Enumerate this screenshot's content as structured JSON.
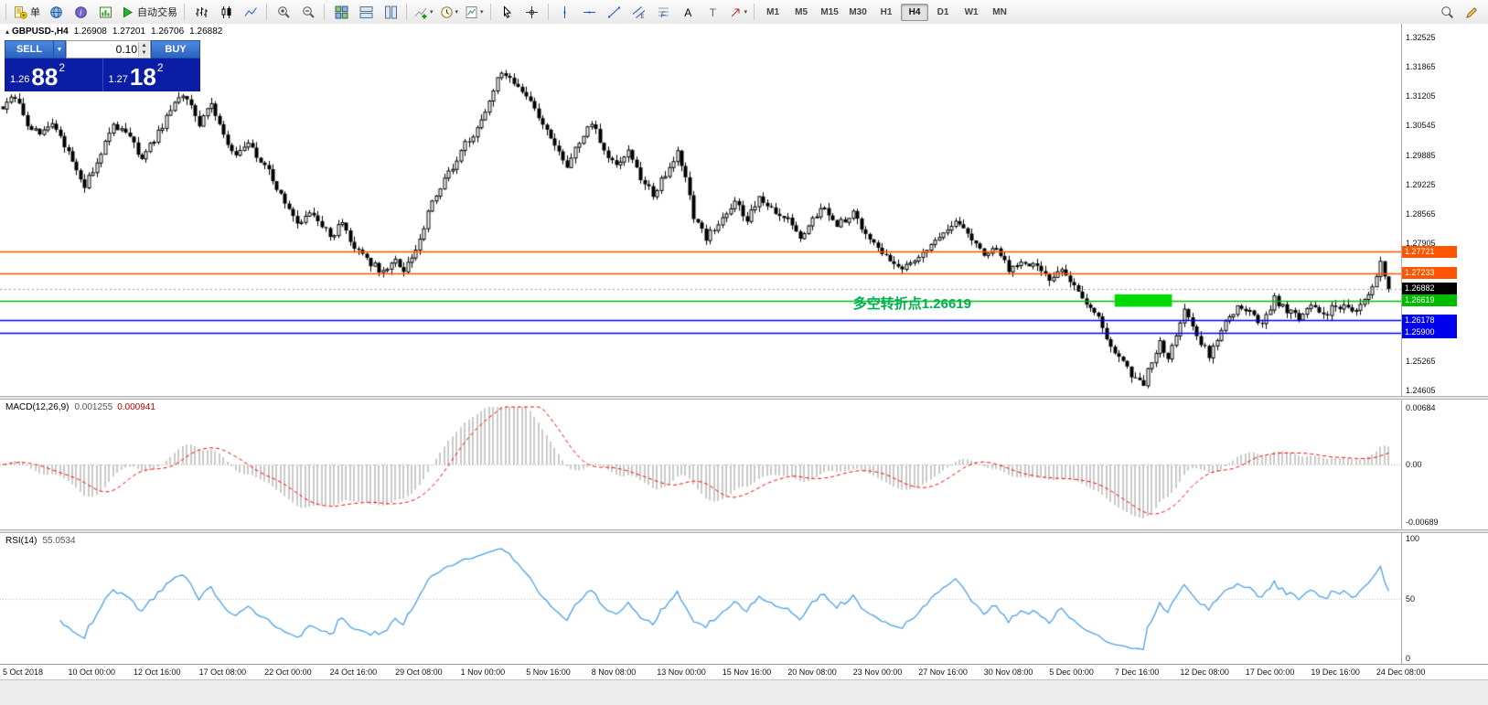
{
  "toolbar": {
    "groups": [
      {
        "items": [
          {
            "name": "new-order-button",
            "icon": "new-order-icon",
            "label": "单"
          },
          {
            "name": "charts-button",
            "icon": "globe-icon"
          },
          {
            "name": "data-window-button",
            "icon": "info-icon"
          },
          {
            "name": "market-watch-button",
            "icon": "chart-book-icon"
          },
          {
            "name": "autotrading-button",
            "icon": "autotrading-play-icon",
            "label": "自动交易"
          }
        ]
      },
      {
        "items": [
          {
            "name": "bar-chart-button",
            "icon": "bars-icon"
          },
          {
            "name": "candlestick-chart-button",
            "icon": "candles-icon"
          },
          {
            "name": "line-chart-button",
            "icon": "line-icon"
          }
        ]
      },
      {
        "items": [
          {
            "name": "zoom-in-button",
            "icon": "zoom-in-icon"
          },
          {
            "name": "zoom-out-button",
            "icon": "zoom-out-icon"
          }
        ]
      },
      {
        "items": [
          {
            "name": "auto-arrange-button",
            "icon": "tile-windows-icon"
          },
          {
            "name": "tile-horizontally-button",
            "icon": "tile-horizontal-icon"
          },
          {
            "name": "tile-vertically-button",
            "icon": "tile-vertical-icon"
          }
        ]
      },
      {
        "items": [
          {
            "name": "indicators-button",
            "icon": "add-indicator-icon",
            "dropdown": true
          },
          {
            "name": "periods-button",
            "icon": "period-clock-icon",
            "dropdown": true
          },
          {
            "name": "templates-button",
            "icon": "template-chart-icon",
            "dropdown": true
          }
        ]
      },
      {
        "items": [
          {
            "name": "cursor-button",
            "icon": "cursor-icon"
          },
          {
            "name": "crosshair-button",
            "icon": "crosshair-icon"
          }
        ]
      },
      {
        "items": [
          {
            "name": "vertical-line-button",
            "icon": "vertical-line-icon"
          },
          {
            "name": "horizontal-line-button",
            "icon": "horizontal-line-icon"
          },
          {
            "name": "trendline-button",
            "icon": "trendline-icon"
          },
          {
            "name": "equidistant-channel-button",
            "icon": "channel-icon"
          },
          {
            "name": "fibonacci-retracement-button",
            "icon": "fibonacci-icon"
          },
          {
            "name": "text-button",
            "icon": "text-icon"
          },
          {
            "name": "text-label-button",
            "icon": "label-icon"
          },
          {
            "name": "arrows-button",
            "icon": "arrow-shapes-icon",
            "dropdown": true
          }
        ]
      }
    ],
    "timeframes": [
      {
        "label": "M1"
      },
      {
        "label": "M5"
      },
      {
        "label": "M15"
      },
      {
        "label": "M30"
      },
      {
        "label": "H1"
      },
      {
        "label": "H4",
        "active": true
      },
      {
        "label": "D1"
      },
      {
        "label": "W1"
      },
      {
        "label": "MN"
      }
    ],
    "right": [
      {
        "name": "search-button",
        "icon": "search-icon"
      },
      {
        "name": "quick-edit-button",
        "icon": "pencil-icon"
      }
    ]
  },
  "header": {
    "symbol": "GBPUSD-,H4",
    "open": "1.26908",
    "high": "1.27201",
    "low": "1.26706",
    "close": "1.26882"
  },
  "widget": {
    "sell_label": "SELL",
    "buy_label": "BUY",
    "volume": "0.10",
    "sell_price": {
      "prefix": "1.26",
      "big": "88",
      "sup": "2"
    },
    "buy_price": {
      "prefix": "1.27",
      "big": "18",
      "sup": "2"
    }
  },
  "macd": {
    "label": "MACD(12,26,9)",
    "value1": "0.001255",
    "value2": "0.000941",
    "scale": [
      "0.00684",
      "0.00",
      "-0.00689"
    ],
    "range": 0.0069
  },
  "rsi": {
    "label": "RSI(14)",
    "value": "55.0534",
    "scale": [
      "100",
      "50",
      "0"
    ],
    "level": 50
  },
  "chart_data": {
    "type": "candlestick",
    "symbol": "GBPUSD-",
    "timeframe": "H4",
    "bar_count": 340,
    "seed": 90210,
    "last_close": 1.26882,
    "price_axis": {
      "min": 1.245,
      "max": 1.3283,
      "tick_labels": [
        "1.32525",
        "1.31865",
        "1.31205",
        "1.30545",
        "1.29885",
        "1.29225",
        "1.28565",
        "1.27905",
        "1.27245",
        "1.26585",
        "1.25925",
        "1.25265",
        "1.24605"
      ]
    },
    "bars_per_label": 16,
    "time_labels": [
      "5 Oct 2018",
      "10 Oct 00:00",
      "12 Oct 16:00",
      "17 Oct 08:00",
      "22 Oct 00:00",
      "24 Oct 16:00",
      "29 Oct 08:00",
      "1 Nov 00:00",
      "5 Nov 16:00",
      "8 Nov 08:00",
      "13 Nov 00:00",
      "15 Nov 16:00",
      "20 Nov 08:00",
      "23 Nov 00:00",
      "27 Nov 16:00",
      "30 Nov 08:00",
      "5 Dec 00:00",
      "7 Dec 16:00",
      "12 Dec 08:00",
      "17 Dec 00:00",
      "19 Dec 16:00",
      "24 Dec 08:00"
    ],
    "waypoints": [
      [
        0,
        1.3095
      ],
      [
        3,
        1.312
      ],
      [
        6,
        1.306
      ],
      [
        9,
        1.303
      ],
      [
        12,
        1.3055
      ],
      [
        16,
        1.2995
      ],
      [
        20,
        1.2915
      ],
      [
        23,
        1.2975
      ],
      [
        27,
        1.3055
      ],
      [
        31,
        1.303
      ],
      [
        34,
        1.2975
      ],
      [
        38,
        1.304
      ],
      [
        42,
        1.3105
      ],
      [
        45,
        1.312
      ],
      [
        48,
        1.306
      ],
      [
        51,
        1.31
      ],
      [
        54,
        1.3035
      ],
      [
        57,
        1.2985
      ],
      [
        60,
        1.3015
      ],
      [
        64,
        1.2965
      ],
      [
        68,
        1.29
      ],
      [
        72,
        1.284
      ],
      [
        76,
        1.286
      ],
      [
        80,
        1.2805
      ],
      [
        83,
        1.2835
      ],
      [
        86,
        1.278
      ],
      [
        90,
        1.2745
      ],
      [
        93,
        1.2725
      ],
      [
        96,
        1.275
      ],
      [
        98,
        1.2722
      ],
      [
        101,
        1.278
      ],
      [
        105,
        1.288
      ],
      [
        109,
        1.2945
      ],
      [
        112,
        1.3
      ],
      [
        115,
        1.3035
      ],
      [
        118,
        1.309
      ],
      [
        121,
        1.316
      ],
      [
        123,
        1.3172
      ],
      [
        126,
        1.314
      ],
      [
        129,
        1.3105
      ],
      [
        132,
        1.306
      ],
      [
        135,
        1.301
      ],
      [
        138,
        1.2965
      ],
      [
        141,
        1.302
      ],
      [
        144,
        1.3065
      ],
      [
        147,
        1.3
      ],
      [
        150,
        1.296
      ],
      [
        153,
        1.3005
      ],
      [
        156,
        1.2935
      ],
      [
        159,
        1.29
      ],
      [
        162,
        1.2945
      ],
      [
        165,
        1.3
      ],
      [
        167,
        1.294
      ],
      [
        169,
        1.285
      ],
      [
        172,
        1.28
      ],
      [
        176,
        1.285
      ],
      [
        179,
        1.2885
      ],
      [
        182,
        1.284
      ],
      [
        185,
        1.2895
      ],
      [
        188,
        1.287
      ],
      [
        192,
        1.2845
      ],
      [
        195,
        1.28
      ],
      [
        198,
        1.285
      ],
      [
        201,
        1.287
      ],
      [
        204,
        1.283
      ],
      [
        208,
        1.2855
      ],
      [
        211,
        1.281
      ],
      [
        214,
        1.2775
      ],
      [
        217,
        1.275
      ],
      [
        220,
        1.2735
      ],
      [
        224,
        1.2755
      ],
      [
        227,
        1.278
      ],
      [
        230,
        1.2815
      ],
      [
        233,
        1.284
      ],
      [
        236,
        1.281
      ],
      [
        240,
        1.2765
      ],
      [
        243,
        1.2785
      ],
      [
        246,
        1.273
      ],
      [
        249,
        1.275
      ],
      [
        252,
        1.2745
      ],
      [
        256,
        1.2705
      ],
      [
        259,
        1.273
      ],
      [
        262,
        1.269
      ],
      [
        265,
        1.266
      ],
      [
        268,
        1.2625
      ],
      [
        271,
        1.256
      ],
      [
        274,
        1.252
      ],
      [
        277,
        1.2485
      ],
      [
        279,
        1.2475
      ],
      [
        281,
        1.253
      ],
      [
        283,
        1.2565
      ],
      [
        285,
        1.2525
      ],
      [
        287,
        1.259
      ],
      [
        289,
        1.264
      ],
      [
        291,
        1.26
      ],
      [
        293,
        1.2565
      ],
      [
        295,
        1.254
      ],
      [
        297,
        1.258
      ],
      [
        299,
        1.262
      ],
      [
        302,
        1.2645
      ],
      [
        305,
        1.2635
      ],
      [
        308,
        1.261
      ],
      [
        311,
        1.2665
      ],
      [
        314,
        1.264
      ],
      [
        317,
        1.262
      ],
      [
        320,
        1.265
      ],
      [
        323,
        1.2625
      ],
      [
        326,
        1.2655
      ],
      [
        329,
        1.264
      ],
      [
        332,
        1.265
      ],
      [
        335,
        1.2685
      ],
      [
        337,
        1.2745
      ],
      [
        339,
        1.26882
      ]
    ],
    "levels": [
      {
        "price": 1.27721,
        "label": "1.27721",
        "color": "#ff5500"
      },
      {
        "price": 1.27233,
        "label": "1.27233",
        "color": "#ff5500"
      },
      {
        "price": 1.26619,
        "label": "1.26619",
        "color": "#00bb00"
      },
      {
        "price": 1.26178,
        "label": "1.26178",
        "color": "#0000ee"
      },
      {
        "price": 1.259,
        "label": "1.25900",
        "color": "#0000ee"
      }
    ],
    "current_price": {
      "price": 1.26882,
      "label": "1.26882",
      "color": "#000000"
    },
    "annotation": {
      "text": "多空转折点1.26619",
      "bar": 208,
      "price": 1.2647,
      "color": "#00b050"
    },
    "highlight_rect": {
      "bar_start": 272,
      "bar_end": 286,
      "price_top": 1.2676,
      "price_bottom": 1.2648,
      "color": "#00d800"
    },
    "colors": {
      "candle": "#000000",
      "up_fill": "#ffffff",
      "down_fill": "#000000",
      "macd_hist": "#c9c9c9",
      "macd_signal": "#ff0000",
      "rsi_line": "#4aa0e6"
    }
  }
}
